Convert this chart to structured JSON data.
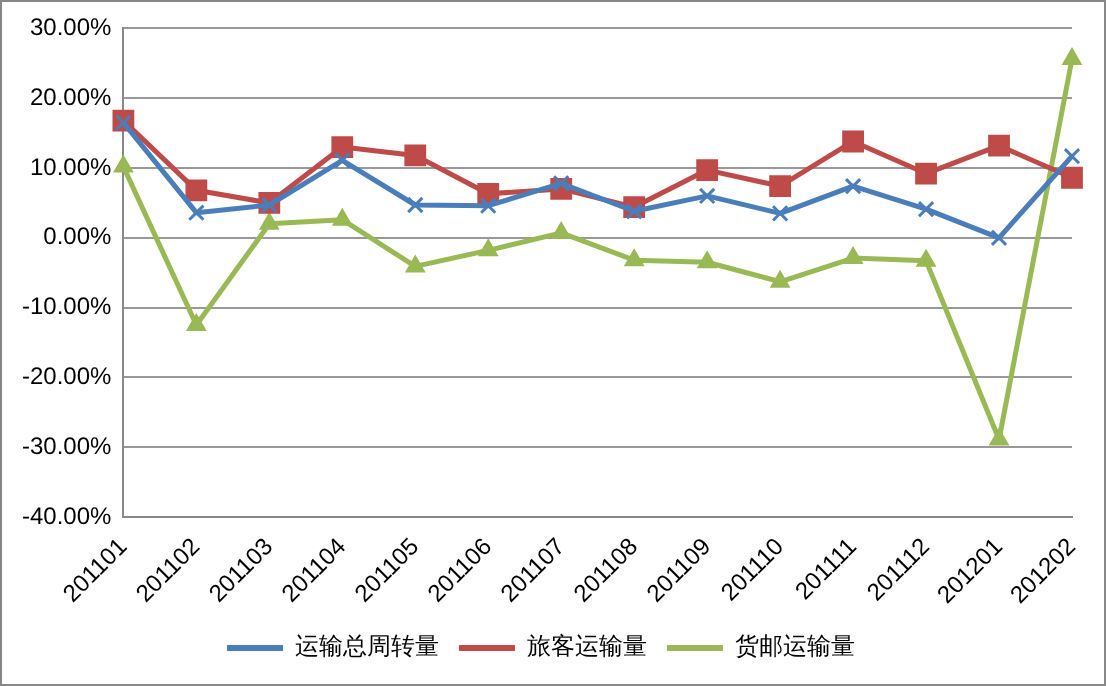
{
  "chart_data": {
    "type": "line",
    "categories": [
      "201101",
      "201102",
      "201103",
      "201104",
      "201105",
      "201106",
      "201107",
      "201108",
      "201109",
      "201110",
      "201111",
      "201112",
      "201201",
      "201202"
    ],
    "series": [
      {
        "name": "运输总周转量",
        "color": "#4a7ebb",
        "marker": "cross",
        "values": [
          16.5,
          3.6,
          4.7,
          11.1,
          4.7,
          4.6,
          7.8,
          3.8,
          6.0,
          3.5,
          7.4,
          4.1,
          0,
          11.7
        ]
      },
      {
        "name": "旅客运输量",
        "color": "#be4b48",
        "marker": "square",
        "values": [
          16.8,
          6.8,
          5.0,
          13.0,
          11.8,
          6.3,
          7.0,
          4.4,
          9.7,
          7.4,
          13.8,
          9.2,
          13.2,
          8.6
        ]
      },
      {
        "name": "货邮运输量",
        "color": "#98b954",
        "marker": "triangle",
        "values": [
          10.2,
          -12.5,
          2.0,
          2.6,
          -4.1,
          -1.8,
          0.7,
          -3.2,
          -3.5,
          -6.3,
          -2.9,
          -3.3,
          -28.9,
          25.6
        ]
      }
    ],
    "ylim": [
      -40,
      30
    ],
    "yticks": [
      {
        "value": -40,
        "label": "-40.00%"
      },
      {
        "value": -30,
        "label": "-30.00%"
      },
      {
        "value": -20,
        "label": "-20.00%"
      },
      {
        "value": -10,
        "label": "-10.00%"
      },
      {
        "value": 0,
        "label": "0.00%"
      },
      {
        "value": 10,
        "label": "10.00%"
      },
      {
        "value": 20,
        "label": "20.00%"
      },
      {
        "value": 30,
        "label": "30.00%"
      }
    ],
    "grid": "y",
    "legend": "bottom",
    "line_style": "solid"
  }
}
